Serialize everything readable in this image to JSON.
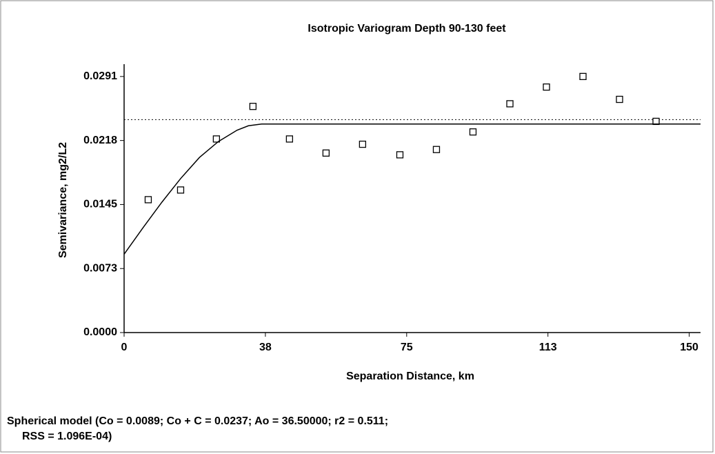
{
  "chart_data": {
    "type": "scatter",
    "title": "Isotropic Variogram Depth 90-130 feet",
    "x_label": "Separation Distance, km",
    "y_label": "Semivariance, mg2/L2",
    "annotations": [
      "Spherical model (Co = 0.0089; Co + C = 0.0237; Ao = 36.50000; r2 = 0.511;",
      "RSS = 1.096E-04)"
    ],
    "xlim": [
      0,
      153
    ],
    "ylim": [
      0,
      0.0305
    ],
    "xticks": [
      0,
      {
        "value": 37.5,
        "label": "38"
      },
      75,
      {
        "value": 112.5,
        "label": "113"
      },
      150
    ],
    "yticks": [
      {
        "value": 0,
        "label": "0.0000"
      },
      {
        "value": 0.007275,
        "label": "0.0073"
      },
      {
        "value": 0.01455,
        "label": "0.0145"
      },
      {
        "value": 0.021825,
        "label": "0.0218"
      },
      0.0291
    ],
    "series": [
      {
        "mode": "markers",
        "color": "#000000",
        "x": [
          6.4,
          15.0,
          24.5,
          34.2,
          43.9,
          53.6,
          63.3,
          73.2,
          82.9,
          92.6,
          102.4,
          112.1,
          121.8,
          131.5,
          141.2
        ],
        "values": [
          0.0151,
          0.0162,
          0.022,
          0.0257,
          0.022,
          0.0204,
          0.0214,
          0.0202,
          0.0208,
          0.0228,
          0.026,
          0.0279,
          0.0291,
          0.0265,
          0.024
        ]
      },
      {
        "mode": "line",
        "color": "#000000",
        "x": [
          0,
          5,
          10,
          15,
          20,
          25,
          30,
          33,
          36.5,
          153
        ],
        "values": [
          0.0089,
          0.0119,
          0.0148,
          0.0175,
          0.0199,
          0.0217,
          0.023,
          0.0235,
          0.0237,
          0.0237
        ]
      }
    ],
    "reference_lines": [
      {
        "value": 0.0242,
        "style": "dotted",
        "color": "#000000"
      }
    ]
  }
}
